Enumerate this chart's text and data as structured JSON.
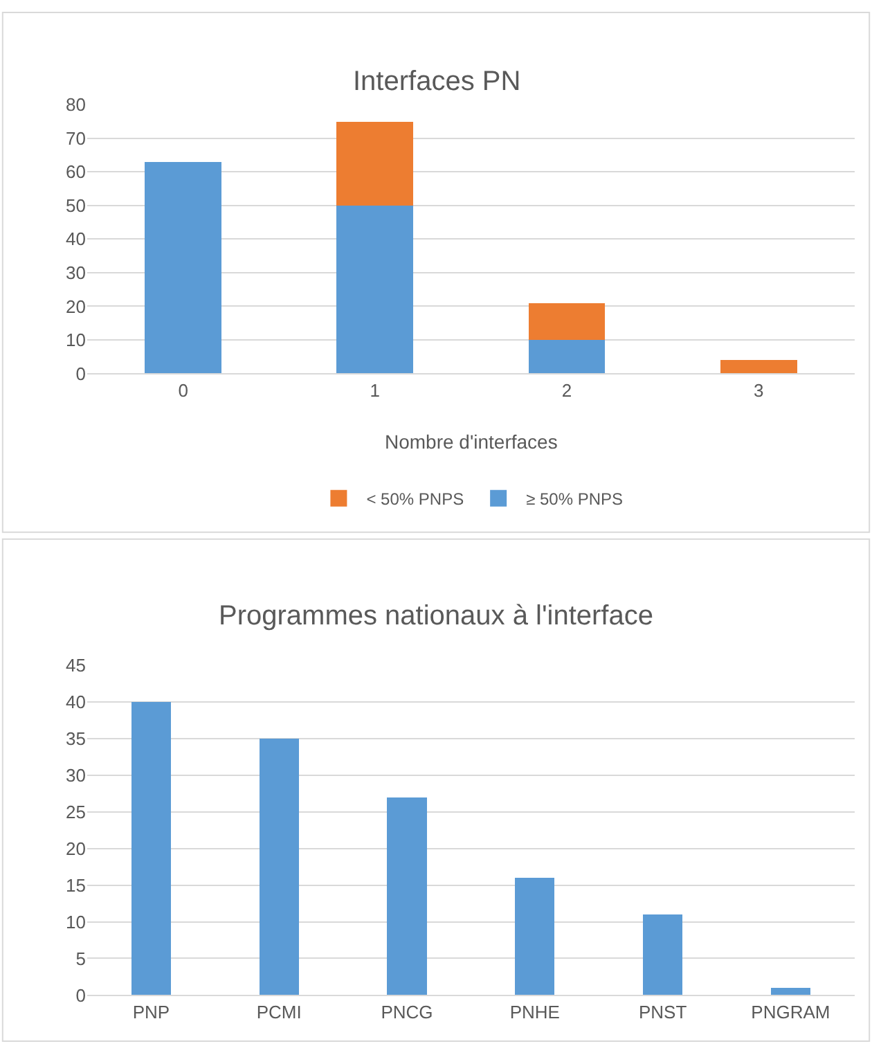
{
  "chart_data": [
    {
      "type": "bar",
      "title": "Interfaces PN",
      "xlabel": "Nombre d'interfaces",
      "categories": [
        "0",
        "1",
        "2",
        "3"
      ],
      "stacked": true,
      "series": [
        {
          "name": "≥ 50% PNPS",
          "color": "#5b9bd5",
          "values": [
            63,
            50,
            10,
            0
          ]
        },
        {
          "name": "< 50% PNPS",
          "color": "#ed7d31",
          "values": [
            0,
            25,
            11,
            4
          ]
        }
      ],
      "ylim": [
        0,
        80
      ],
      "yticks": [
        0,
        10,
        20,
        30,
        40,
        50,
        60,
        70,
        80
      ],
      "grid": "y",
      "legend": "bottom"
    },
    {
      "type": "bar",
      "title": "Programmes nationaux à l'interface",
      "categories": [
        "PNP",
        "PCMI",
        "PNCG",
        "PNHE",
        "PNST",
        "PNGRAM"
      ],
      "series": [
        {
          "color": "#5b9bd5",
          "values": [
            40,
            35,
            27,
            16,
            11,
            1
          ]
        }
      ],
      "ylim": [
        0,
        45
      ],
      "yticks": [
        0,
        5,
        10,
        15,
        20,
        25,
        30,
        35,
        40,
        45
      ],
      "grid": "y"
    }
  ]
}
